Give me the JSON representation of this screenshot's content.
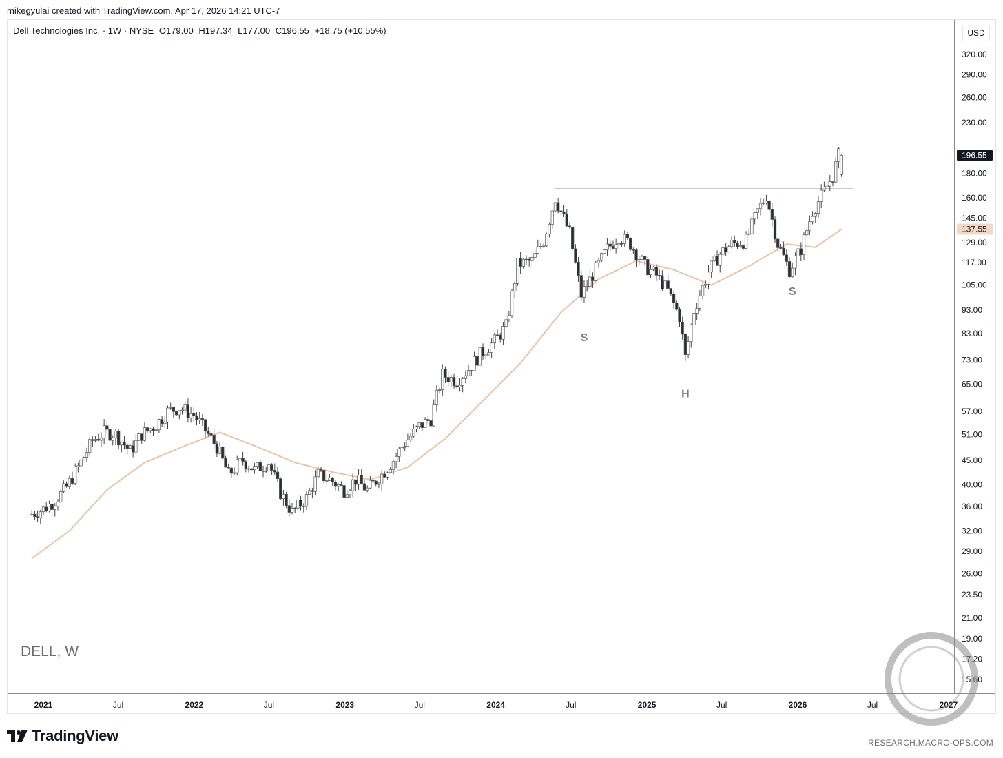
{
  "header": {
    "credit": "mikegyulai created with TradingView.com, Apr 17, 2026 14:21 UTC-7"
  },
  "symbol_info": {
    "name": "Dell Technologies Inc. · 1W · NYSE",
    "open": "O179.00",
    "high": "H197.34",
    "low": "L177.00",
    "close": "C196.55",
    "change": "+18.75 (+10.55%)"
  },
  "currency": "USD",
  "watermark": "DELL, W",
  "branding": {
    "logo_text": "TradingView",
    "source": "RESEARCH.MACRO-OPS.COM"
  },
  "colors": {
    "candle_up_fill": "#ffffff",
    "candle_down_fill": "#2a2e39",
    "candle_outline": "#555555",
    "moving_average": "#e8c4a8",
    "last_price_bg": "#131722",
    "ma_price_bg": "#f3d9c5",
    "resistance_line": "#2a2e39"
  },
  "chart_data": {
    "type": "candlestick",
    "symbol": "DELL",
    "timeframe": "1W",
    "y_scale": "log",
    "ylim": [
      14.5,
      340
    ],
    "y_ticks": [
      15.6,
      17.2,
      19.0,
      21.0,
      23.5,
      26.0,
      29.0,
      32.0,
      36.0,
      40.0,
      45.0,
      51.0,
      57.0,
      65.0,
      73.0,
      83.0,
      93.0,
      105.0,
      117.0,
      129.0,
      145.0,
      160.0,
      180.0,
      230.0,
      260.0,
      290.0,
      320.0
    ],
    "y_tick_labels": [
      "15.60",
      "17.20",
      "19.00",
      "21.00",
      "23.50",
      "26.00",
      "29.00",
      "32.00",
      "36.00",
      "40.00",
      "45.00",
      "51.00",
      "57.00",
      "65.00",
      "73.00",
      "83.00",
      "93.00",
      "105.00",
      "117.00",
      "129.00",
      "145.00",
      "160.00",
      "180.00",
      "230.00",
      "260.00",
      "290.00",
      "320.00"
    ],
    "x_ticks": [
      {
        "date": "2021-01-01",
        "label": "2021",
        "year": true
      },
      {
        "date": "2021-07-01",
        "label": "Jul",
        "year": false
      },
      {
        "date": "2022-01-01",
        "label": "2022",
        "year": true
      },
      {
        "date": "2022-07-01",
        "label": "Jul",
        "year": false
      },
      {
        "date": "2023-01-01",
        "label": "2023",
        "year": true
      },
      {
        "date": "2023-07-01",
        "label": "Jul",
        "year": false
      },
      {
        "date": "2024-01-01",
        "label": "2024",
        "year": true
      },
      {
        "date": "2024-07-01",
        "label": "Jul",
        "year": false
      },
      {
        "date": "2025-01-01",
        "label": "2025",
        "year": true
      },
      {
        "date": "2025-07-01",
        "label": "Jul",
        "year": false
      },
      {
        "date": "2026-01-01",
        "label": "2026",
        "year": true
      },
      {
        "date": "2026-07-01",
        "label": "Jul",
        "year": false
      },
      {
        "date": "2027-01-01",
        "label": "2027",
        "year": true
      }
    ],
    "last_price": {
      "value": 196.55,
      "label": "196.55"
    },
    "ma_price": {
      "value": 137.55,
      "label": "137.55"
    },
    "resistance": {
      "price": 167,
      "from": "2024-05-24",
      "to": "2026-05-15"
    },
    "pattern_labels": [
      {
        "text": "S",
        "date": "2024-08-02",
        "price": 80
      },
      {
        "text": "H",
        "date": "2025-04-04",
        "price": 61
      },
      {
        "text": "S",
        "date": "2025-12-19",
        "price": 100
      }
    ],
    "series": [
      {
        "date": "2020-12-04",
        "close": 34.5
      },
      {
        "date": "2021-01-08",
        "close": 35.5
      },
      {
        "date": "2021-02-05",
        "close": 37.0
      },
      {
        "date": "2021-03-05",
        "close": 39.5
      },
      {
        "date": "2021-04-02",
        "close": 43.5
      },
      {
        "date": "2021-05-07",
        "close": 49.5
      },
      {
        "date": "2021-06-04",
        "close": 51.5
      },
      {
        "date": "2021-07-02",
        "close": 51.0
      },
      {
        "date": "2021-08-06",
        "close": 47.0
      },
      {
        "date": "2021-09-03",
        "close": 51.0
      },
      {
        "date": "2021-10-08",
        "close": 53.5
      },
      {
        "date": "2021-11-05",
        "close": 57.0
      },
      {
        "date": "2021-12-03",
        "close": 58.0
      },
      {
        "date": "2022-01-07",
        "close": 56.0
      },
      {
        "date": "2022-02-04",
        "close": 52.0
      },
      {
        "date": "2022-03-04",
        "close": 48.0
      },
      {
        "date": "2022-04-01",
        "close": 42.0
      },
      {
        "date": "2022-05-06",
        "close": 45.0
      },
      {
        "date": "2022-06-03",
        "close": 43.0
      },
      {
        "date": "2022-07-08",
        "close": 44.5
      },
      {
        "date": "2022-08-05",
        "close": 38.5
      },
      {
        "date": "2022-09-02",
        "close": 35.0
      },
      {
        "date": "2022-10-07",
        "close": 37.5
      },
      {
        "date": "2022-11-04",
        "close": 42.0
      },
      {
        "date": "2022-12-02",
        "close": 41.0
      },
      {
        "date": "2023-01-06",
        "close": 39.0
      },
      {
        "date": "2023-02-03",
        "close": 41.0
      },
      {
        "date": "2023-03-03",
        "close": 39.0
      },
      {
        "date": "2023-04-07",
        "close": 42.0
      },
      {
        "date": "2023-05-05",
        "close": 45.0
      },
      {
        "date": "2023-06-02",
        "close": 49.0
      },
      {
        "date": "2023-07-07",
        "close": 53.0
      },
      {
        "date": "2023-08-04",
        "close": 55.0
      },
      {
        "date": "2023-09-01",
        "close": 68.0
      },
      {
        "date": "2023-10-06",
        "close": 66.0
      },
      {
        "date": "2023-11-03",
        "close": 70.0
      },
      {
        "date": "2023-12-01",
        "close": 75.0
      },
      {
        "date": "2024-01-05",
        "close": 80.0
      },
      {
        "date": "2024-02-02",
        "close": 86.0
      },
      {
        "date": "2024-03-01",
        "close": 116.0
      },
      {
        "date": "2024-04-05",
        "close": 118.0
      },
      {
        "date": "2024-05-03",
        "close": 130.0
      },
      {
        "date": "2024-05-31",
        "close": 160.0
      },
      {
        "date": "2024-07-05",
        "close": 135.0
      },
      {
        "date": "2024-08-02",
        "close": 100.0
      },
      {
        "date": "2024-09-06",
        "close": 113.0
      },
      {
        "date": "2024-10-04",
        "close": 125.0
      },
      {
        "date": "2024-11-01",
        "close": 133.0
      },
      {
        "date": "2024-11-29",
        "close": 128.0
      },
      {
        "date": "2025-01-03",
        "close": 115.0
      },
      {
        "date": "2025-01-31",
        "close": 110.0
      },
      {
        "date": "2025-02-28",
        "close": 102.0
      },
      {
        "date": "2025-03-28",
        "close": 90.0
      },
      {
        "date": "2025-04-11",
        "close": 74.0
      },
      {
        "date": "2025-05-02",
        "close": 93.0
      },
      {
        "date": "2025-06-06",
        "close": 112.0
      },
      {
        "date": "2025-07-04",
        "close": 122.0
      },
      {
        "date": "2025-08-01",
        "close": 128.0
      },
      {
        "date": "2025-09-05",
        "close": 130.0
      },
      {
        "date": "2025-10-03",
        "close": 150.0
      },
      {
        "date": "2025-10-24",
        "close": 162.0
      },
      {
        "date": "2025-11-21",
        "close": 128.0
      },
      {
        "date": "2025-12-19",
        "close": 113.0
      },
      {
        "date": "2026-01-16",
        "close": 125.0
      },
      {
        "date": "2026-02-13",
        "close": 150.0
      },
      {
        "date": "2026-03-13",
        "close": 165.0
      },
      {
        "date": "2026-04-03",
        "close": 178.0
      },
      {
        "date": "2026-04-17",
        "open": 179.0,
        "high": 197.34,
        "low": 177.0,
        "close": 196.55
      }
    ],
    "moving_average": [
      {
        "date": "2020-12-04",
        "value": 28.0
      },
      {
        "date": "2021-03-05",
        "value": 32.0
      },
      {
        "date": "2021-06-04",
        "value": 39.0
      },
      {
        "date": "2021-09-03",
        "value": 44.5
      },
      {
        "date": "2021-12-03",
        "value": 48.0
      },
      {
        "date": "2022-03-04",
        "value": 51.5
      },
      {
        "date": "2022-06-03",
        "value": 48.0
      },
      {
        "date": "2022-09-02",
        "value": 44.5
      },
      {
        "date": "2022-12-02",
        "value": 42.5
      },
      {
        "date": "2023-03-03",
        "value": 41.0
      },
      {
        "date": "2023-06-02",
        "value": 43.5
      },
      {
        "date": "2023-09-01",
        "value": 50.0
      },
      {
        "date": "2023-12-01",
        "value": 60.0
      },
      {
        "date": "2024-03-01",
        "value": 72.0
      },
      {
        "date": "2024-06-07",
        "value": 92.0
      },
      {
        "date": "2024-09-06",
        "value": 108.0
      },
      {
        "date": "2024-12-06",
        "value": 118.0
      },
      {
        "date": "2025-03-07",
        "value": 113.0
      },
      {
        "date": "2025-06-06",
        "value": 105.0
      },
      {
        "date": "2025-09-05",
        "value": 115.0
      },
      {
        "date": "2025-12-05",
        "value": 128.0
      },
      {
        "date": "2026-02-13",
        "value": 126.0
      },
      {
        "date": "2026-04-17",
        "value": 137.55
      }
    ]
  }
}
